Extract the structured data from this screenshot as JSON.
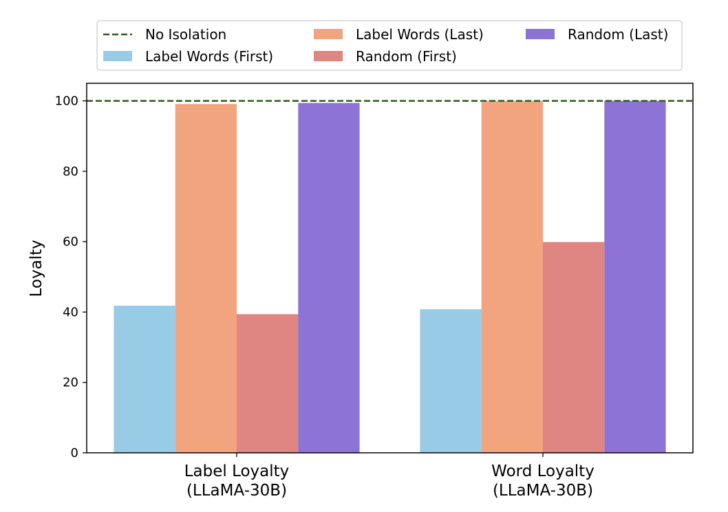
{
  "chart_data": {
    "type": "bar",
    "categories": [
      [
        "Label Loyalty",
        "(LLaMA-30B)"
      ],
      [
        "Word Loyalty",
        "(LLaMA-30B)"
      ]
    ],
    "series": [
      {
        "name": "Label Words (First)",
        "color": "#97cbe6",
        "values": [
          41.8,
          40.8
        ]
      },
      {
        "name": "Label Words (Last)",
        "color": "#f2a47f",
        "values": [
          99.1,
          100.0
        ]
      },
      {
        "name": "Random (First)",
        "color": "#e08682",
        "values": [
          39.4,
          59.9
        ]
      },
      {
        "name": "Random (Last)",
        "color": "#8d73d6",
        "values": [
          99.4,
          100.0
        ]
      }
    ],
    "reference_line": {
      "name": "No Isolation",
      "value": 100,
      "color": "#2b5d18",
      "style": "dashed"
    },
    "xlabel": "",
    "ylabel": "Loyalty",
    "ylim": [
      0,
      105
    ],
    "yticks": [
      0,
      20,
      40,
      60,
      80,
      100
    ],
    "grid": false,
    "legend_position": "top-center",
    "legend_order": [
      "No Isolation",
      "Label Words (First)",
      "Label Words (Last)",
      "Random (First)",
      "Random (Last)"
    ]
  }
}
